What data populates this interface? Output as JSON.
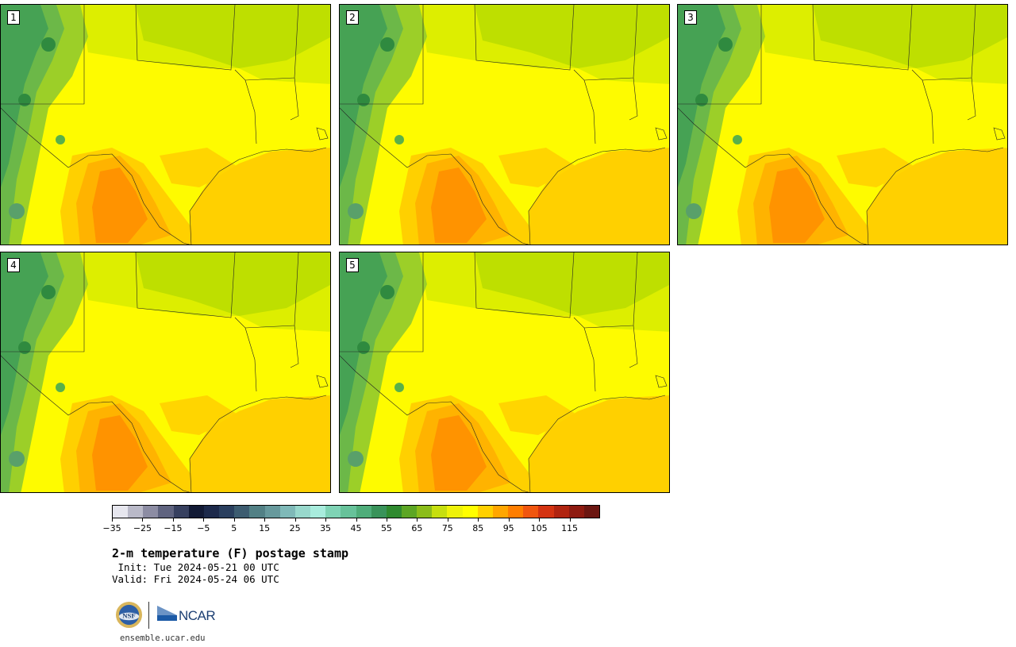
{
  "stamps": [
    {
      "label": "1"
    },
    {
      "label": "2"
    },
    {
      "label": "3"
    },
    {
      "label": "4"
    },
    {
      "label": "5"
    }
  ],
  "colorbar": {
    "colors": [
      "#e6e6ee",
      "#b9b9c8",
      "#8c8ca3",
      "#5f637f",
      "#37405f",
      "#121a35",
      "#1d2a4b",
      "#2a3f5e",
      "#3d5c70",
      "#528085",
      "#67999c",
      "#7fb9b8",
      "#98d8cc",
      "#a8ecdd",
      "#7fd3b5",
      "#67c29a",
      "#4fad7a",
      "#39935a",
      "#2f8a2f",
      "#5ca624",
      "#8bbd1a",
      "#c6df0f",
      "#eef20a",
      "#fffe00",
      "#ffd000",
      "#ffa600",
      "#ff7e00",
      "#f0560f",
      "#d43311",
      "#b02410",
      "#8e1a10",
      "#6b1611"
    ],
    "tick_labels": [
      "−35",
      "−25",
      "−15",
      "−5",
      "5",
      "15",
      "25",
      "35",
      "45",
      "55",
      "65",
      "75",
      "85",
      "95",
      "105",
      "115"
    ]
  },
  "title": "2-m temperature (F) postage stamp",
  "init_line": " Init: Tue 2024-05-21 00 UTC",
  "valid_line": "Valid: Fri 2024-05-24 06 UTC",
  "branding": {
    "nsf_logo": "NSF",
    "ncar_logo": "NCAR",
    "url": "ensemble.ucar.edu"
  }
}
